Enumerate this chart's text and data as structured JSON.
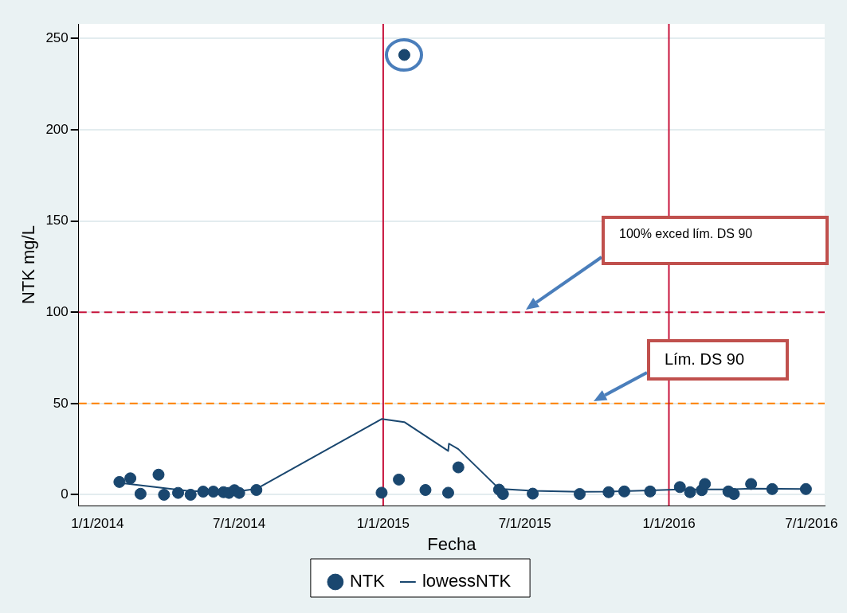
{
  "chart_data": {
    "type": "scatter",
    "xlabel": "Fecha",
    "ylabel": "NTK mg/L",
    "xlim": [
      "2013-12-08",
      "2016-07-18"
    ],
    "ylim": [
      -6,
      258
    ],
    "xticks": [
      {
        "value": "2014-01-01",
        "label": "1/1/2014"
      },
      {
        "value": "2014-07-01",
        "label": "7/1/2014"
      },
      {
        "value": "2015-01-01",
        "label": "1/1/2015"
      },
      {
        "value": "2015-07-01",
        "label": "7/1/2015"
      },
      {
        "value": "2016-01-01",
        "label": "1/1/2016"
      },
      {
        "value": "2016-07-01",
        "label": "7/1/2016"
      }
    ],
    "yticks": [
      0,
      50,
      100,
      150,
      200,
      250
    ],
    "grid": "y",
    "legend": "bottom",
    "series": [
      {
        "name": "NTK",
        "type": "scatter",
        "marker": "circle",
        "color": "#1a476f",
        "x": [
          "2014-01-29",
          "2014-02-12",
          "2014-02-25",
          "2014-03-20",
          "2014-03-27",
          "2014-04-14",
          "2014-04-30",
          "2014-05-16",
          "2014-05-29",
          "2014-06-11",
          "2014-06-18",
          "2014-06-25",
          "2014-07-01",
          "2014-07-23",
          "2014-12-30",
          "2015-01-21",
          "2015-01-28",
          "2015-02-24",
          "2015-03-25",
          "2015-04-07",
          "2015-05-29",
          "2015-06-03",
          "2015-07-11",
          "2015-09-09",
          "2015-10-16",
          "2015-11-05",
          "2015-12-08",
          "2016-01-15",
          "2016-01-28",
          "2016-02-12",
          "2016-02-16",
          "2016-03-17",
          "2016-03-24",
          "2016-04-15",
          "2016-05-12",
          "2016-06-24"
        ],
        "values": [
          7,
          9,
          0.5,
          11,
          0,
          1,
          0,
          1.7,
          1.7,
          1.4,
          1,
          2.5,
          1,
          2.6,
          1.1,
          8.3,
          241,
          2.6,
          1.1,
          15,
          2.8,
          0.4,
          0.6,
          0.4,
          1.4,
          1.8,
          1.8,
          4.2,
          1.4,
          2.5,
          5.9,
          1.8,
          0.4,
          5.9,
          3.1,
          3.1
        ]
      },
      {
        "name": "lowessNTK",
        "type": "line",
        "marker": "none",
        "line_style": "solid",
        "color": "#1a476f",
        "x": [
          "2014-01-29",
          "2014-04-30",
          "2014-07-01",
          "2014-07-23",
          "2014-12-30",
          "2015-01-28",
          "2015-03-25",
          "2015-03-26",
          "2015-04-07",
          "2015-05-29",
          "2015-07-11",
          "2015-09-09",
          "2015-10-16",
          "2015-12-08",
          "2016-01-15",
          "2016-03-17",
          "2016-04-15",
          "2016-06-24"
        ],
        "values": [
          6.5,
          1.9,
          1.9,
          3.2,
          41.5,
          39.8,
          24,
          28,
          25,
          3.3,
          2.2,
          1.6,
          1.7,
          2.4,
          2.9,
          2.9,
          3.4,
          3.1
        ]
      }
    ],
    "ref_lines": [
      {
        "axis": "y",
        "value": 100,
        "color": "#c8143c",
        "line_style": "dashed"
      },
      {
        "axis": "y",
        "value": 50,
        "color": "#ff8000",
        "line_style": "dashed"
      },
      {
        "axis": "x",
        "value": "2015-01-01",
        "color": "#c8143c",
        "line_style": "solid"
      },
      {
        "axis": "x",
        "value": "2016-01-01",
        "color": "#c8143c",
        "line_style": "solid"
      }
    ],
    "annotations": [
      "100% exced lím. DS 90",
      "Lím. DS 90"
    ]
  }
}
